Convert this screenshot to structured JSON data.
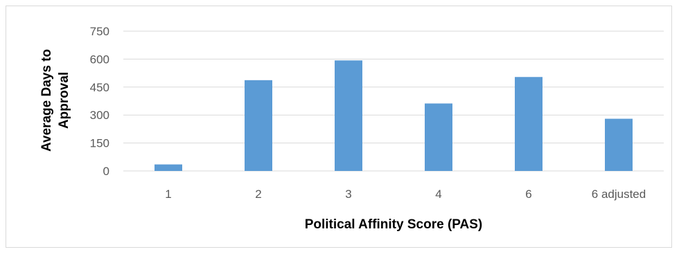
{
  "chart_data": {
    "type": "bar",
    "title": "",
    "xlabel": "Political Affinity Score (PAS)",
    "ylabel_lines": [
      "Average Days to",
      "Approval"
    ],
    "categories": [
      "1",
      "2",
      "3",
      "4",
      "6",
      "6 adjusted"
    ],
    "series": [
      {
        "values": [
          35,
          487,
          593,
          362,
          504,
          280
        ]
      }
    ],
    "ylim": [
      0,
      750
    ],
    "yticks": [
      "0",
      "150",
      "300",
      "450",
      "600",
      "750"
    ],
    "grid": true,
    "legend": "none",
    "colors": {
      "bar": "#5b9bd5",
      "grid": "#d9d9d9",
      "tick_text": "#595959"
    }
  }
}
